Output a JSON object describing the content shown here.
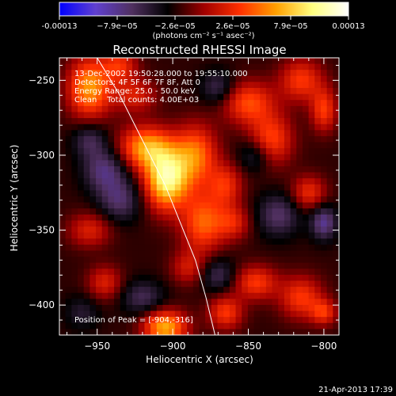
{
  "chart_data": {
    "type": "heatmap",
    "title": "Reconstructed RHESSI Image",
    "xlabel": "Heliocentric X (arcsec)",
    "ylabel": "Heliocentric Y (arcsec)",
    "xlim": [
      -975,
      -790
    ],
    "ylim": [
      -420,
      -235
    ],
    "x_ticks": [
      -950,
      -900,
      -850,
      -800
    ],
    "y_ticks": [
      -250,
      -300,
      -350,
      -400
    ],
    "colorbar": {
      "min": -0.00013,
      "max": 0.00013,
      "tick_labels": [
        "-0.00013",
        "−7.9e−05",
        "−2.6e−05",
        "2.6e−05",
        "7.9e−05",
        "0.00013"
      ],
      "unit_label": "(photons cm⁻² s⁻¹ asec⁻²)"
    },
    "annotations": [
      "13-Dec-2002 19:50:28.000 to 19:55:10.000",
      "Detectors: 4F 5F 6F 7F 8F, Att 0",
      "Energy Range: 25.0 - 50.0 keV",
      "Clean    Total counts: 4.00E+03"
    ],
    "peak_label": "Position of Peak = [-904,-316]",
    "peak": [
      -904,
      -316
    ],
    "limb_curve": [
      [
        -950,
        -235
      ],
      [
        -935,
        -260
      ],
      [
        -920,
        -290
      ],
      [
        -905,
        -320
      ],
      [
        -895,
        -345
      ],
      [
        -885,
        -370
      ],
      [
        -878,
        -395
      ],
      [
        -872,
        -420
      ]
    ],
    "blobs": [
      {
        "x": -904,
        "y": -316,
        "amp": 1.0,
        "sx": 10,
        "sy": 14
      },
      {
        "x": -918,
        "y": -295,
        "amp": 0.7,
        "sx": 12,
        "sy": 10
      },
      {
        "x": -885,
        "y": -300,
        "amp": 0.6,
        "sx": 10,
        "sy": 14
      },
      {
        "x": -880,
        "y": -345,
        "amp": 0.55,
        "sx": 10,
        "sy": 14
      },
      {
        "x": -865,
        "y": -320,
        "amp": 0.4,
        "sx": 8,
        "sy": 10
      },
      {
        "x": -955,
        "y": -255,
        "amp": 0.7,
        "sx": 10,
        "sy": 14
      },
      {
        "x": -925,
        "y": -260,
        "amp": 0.35,
        "sx": 10,
        "sy": 8
      },
      {
        "x": -905,
        "y": -415,
        "amp": 0.75,
        "sx": 10,
        "sy": 8
      },
      {
        "x": -865,
        "y": -405,
        "amp": 0.45,
        "sx": 8,
        "sy": 8
      },
      {
        "x": -845,
        "y": -385,
        "amp": 0.45,
        "sx": 10,
        "sy": 8
      },
      {
        "x": -815,
        "y": -395,
        "amp": 0.45,
        "sx": 10,
        "sy": 10
      },
      {
        "x": -800,
        "y": -405,
        "amp": 0.4,
        "sx": 6,
        "sy": 6
      },
      {
        "x": -850,
        "y": -265,
        "amp": 0.5,
        "sx": 12,
        "sy": 10
      },
      {
        "x": -835,
        "y": -290,
        "amp": 0.5,
        "sx": 10,
        "sy": 12
      },
      {
        "x": -815,
        "y": -250,
        "amp": 0.45,
        "sx": 10,
        "sy": 10
      },
      {
        "x": -800,
        "y": -270,
        "amp": 0.45,
        "sx": 6,
        "sy": 10
      },
      {
        "x": -810,
        "y": -325,
        "amp": 0.4,
        "sx": 8,
        "sy": 8
      },
      {
        "x": -860,
        "y": -345,
        "amp": 0.35,
        "sx": 8,
        "sy": 8
      },
      {
        "x": -955,
        "y": -350,
        "amp": 0.35,
        "sx": 10,
        "sy": 8
      },
      {
        "x": -945,
        "y": -385,
        "amp": 0.35,
        "sx": 8,
        "sy": 8
      },
      {
        "x": -935,
        "y": -240,
        "amp": 0.4,
        "sx": 8,
        "sy": 8
      },
      {
        "x": -890,
        "y": -375,
        "amp": 0.3,
        "sx": 8,
        "sy": 8
      },
      {
        "x": -945,
        "y": -310,
        "amp": -0.4,
        "sx": 10,
        "sy": 10
      },
      {
        "x": -955,
        "y": -290,
        "amp": -0.3,
        "sx": 8,
        "sy": 8
      },
      {
        "x": -935,
        "y": -330,
        "amp": -0.35,
        "sx": 10,
        "sy": 10
      },
      {
        "x": -845,
        "y": -300,
        "amp": -0.3,
        "sx": 8,
        "sy": 8
      },
      {
        "x": -830,
        "y": -340,
        "amp": -0.35,
        "sx": 10,
        "sy": 10
      },
      {
        "x": -800,
        "y": -345,
        "amp": -0.45,
        "sx": 6,
        "sy": 8
      },
      {
        "x": -870,
        "y": -255,
        "amp": -0.3,
        "sx": 8,
        "sy": 8
      },
      {
        "x": -870,
        "y": -380,
        "amp": -0.3,
        "sx": 8,
        "sy": 8
      },
      {
        "x": -920,
        "y": -395,
        "amp": -0.3,
        "sx": 10,
        "sy": 8
      },
      {
        "x": -960,
        "y": -405,
        "amp": -0.2,
        "sx": 8,
        "sy": 8
      }
    ],
    "grid": false
  },
  "footer": {
    "timestamp": "21-Apr-2013 17:39"
  },
  "colors": {
    "background": "#000000",
    "foreground": "#ffffff",
    "colormap": [
      "#0000ff",
      "#6040d0",
      "#503060",
      "#000000",
      "#a00000",
      "#ff3000",
      "#ffa000",
      "#ffff80",
      "#ffffff"
    ]
  }
}
